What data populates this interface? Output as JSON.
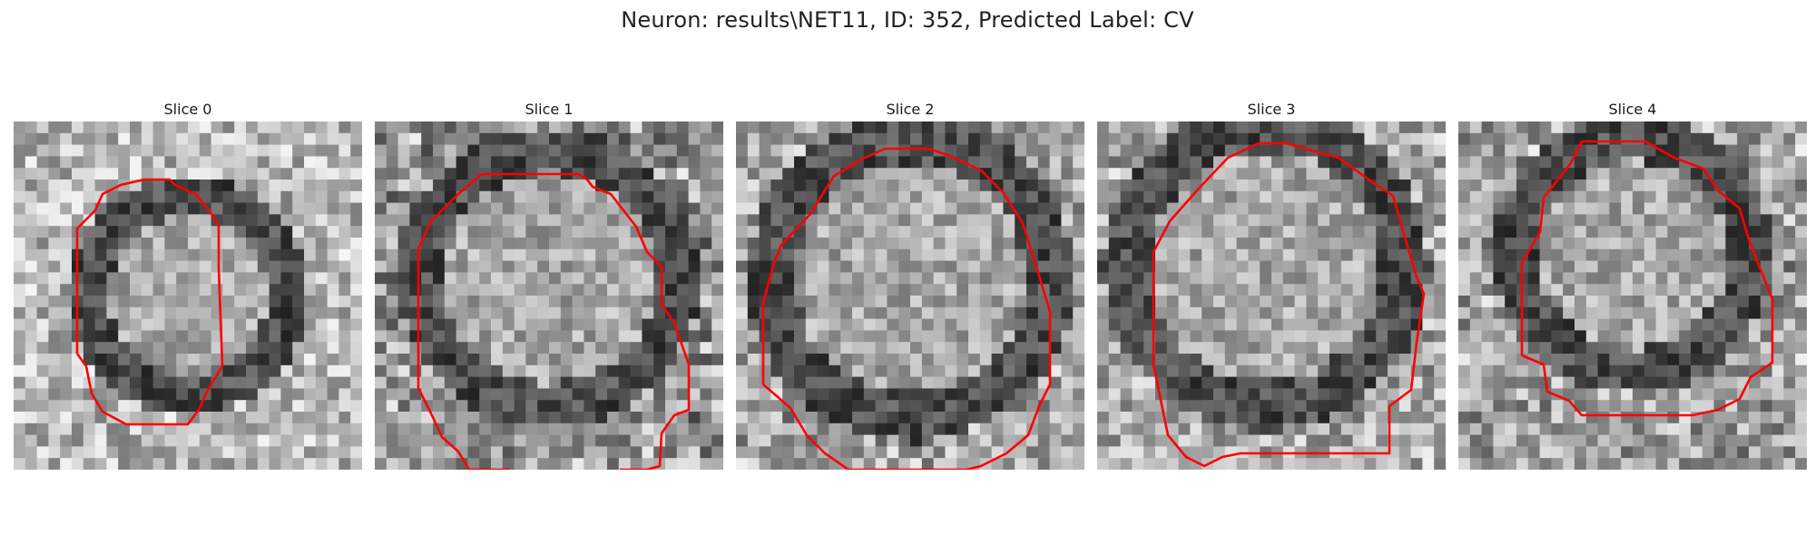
{
  "figure": {
    "suptitle": "Neuron: results\\NET11, ID: 352, Predicted Label: CV",
    "contour_color": "#ff0000",
    "colormap": "gray",
    "grid_size": 30,
    "panels": [
      {
        "title": "Slice 0",
        "contour_shape": "octagon"
      },
      {
        "title": "Slice 1",
        "contour_shape": "open-octagon"
      },
      {
        "title": "Slice 2",
        "contour_shape": "octagon"
      },
      {
        "title": "Slice 3",
        "contour_shape": "octagon"
      },
      {
        "title": "Slice 4",
        "contour_shape": "octagon"
      }
    ]
  }
}
